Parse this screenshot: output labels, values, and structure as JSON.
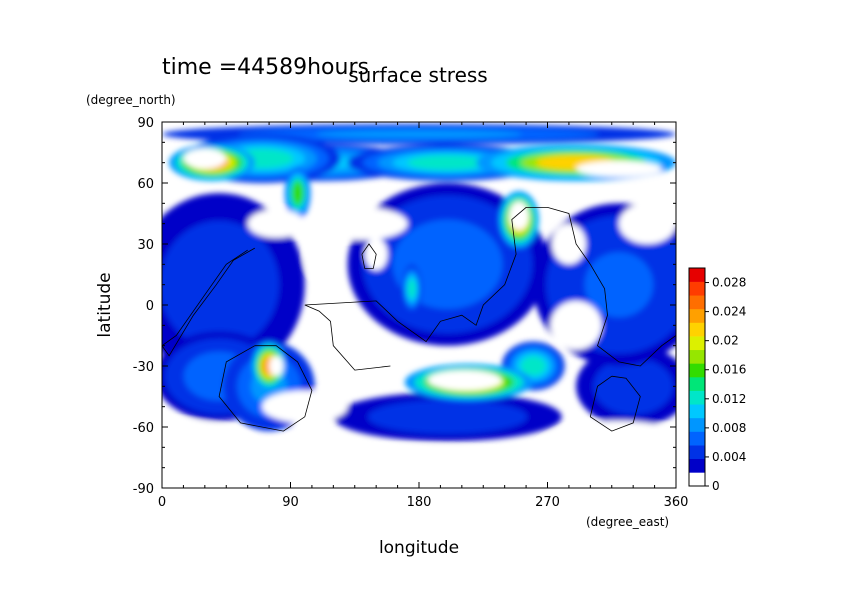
{
  "header": {
    "time_label": "time =44589hours",
    "title": "surface stress"
  },
  "chart_data": {
    "type": "heatmap",
    "title": "surface stress",
    "xlabel": "longitude",
    "ylabel": "latitude",
    "xunit": "(degree_east)",
    "yunit": "(degree_north)",
    "xlim": [
      0,
      360
    ],
    "ylim": [
      -90,
      90
    ],
    "xticks": [
      0,
      90,
      180,
      270,
      360
    ],
    "yticks": [
      90,
      60,
      30,
      0,
      -30,
      -60,
      -90
    ],
    "grid": false,
    "colorbar": {
      "min": 0,
      "max": 0.03,
      "tick_values": [
        0,
        0.004,
        0.008,
        0.012,
        0.016,
        0.02,
        0.024,
        0.028
      ],
      "tick_labels": [
        "0",
        "0.004",
        "0.008",
        "0.012",
        "0.016",
        "0.02",
        "0.024",
        "0.028"
      ],
      "colors": [
        "#ffffff",
        "#0000c8",
        "#0032e6",
        "#0064ff",
        "#0096ff",
        "#00c8ff",
        "#00e6c8",
        "#00e678",
        "#32dc00",
        "#96e600",
        "#dcf000",
        "#ffd200",
        "#ffa000",
        "#ff6e00",
        "#ff3c00",
        "#e60000"
      ]
    },
    "blobs": [
      {
        "lon": 35,
        "lat": 70,
        "rx": 30,
        "ry": 9,
        "value": 0.026
      },
      {
        "lon": 70,
        "lat": 72,
        "rx": 55,
        "ry": 12,
        "value": 0.012
      },
      {
        "lon": 290,
        "lat": 70,
        "rx": 70,
        "ry": 9,
        "value": 0.024
      },
      {
        "lon": 200,
        "lat": 70,
        "rx": 70,
        "ry": 9,
        "value": 0.014
      },
      {
        "lon": 110,
        "lat": 70,
        "rx": 70,
        "ry": 9,
        "value": 0.011
      },
      {
        "lon": 180,
        "lat": 84,
        "rx": 180,
        "ry": 5,
        "value": 0.008
      },
      {
        "lon": 95,
        "lat": 55,
        "rx": 9,
        "ry": 13,
        "value": 0.018
      },
      {
        "lon": 250,
        "lat": 42,
        "rx": 14,
        "ry": 14,
        "value": 0.026
      },
      {
        "lon": 175,
        "lat": 8,
        "rx": 7,
        "ry": 12,
        "value": 0.014
      },
      {
        "lon": 215,
        "lat": -38,
        "rx": 45,
        "ry": 9,
        "value": 0.026
      },
      {
        "lon": 75,
        "lat": -30,
        "rx": 12,
        "ry": 12,
        "value": 0.026
      },
      {
        "lon": 75,
        "lat": -40,
        "rx": 32,
        "ry": 22,
        "value": 0.008
      },
      {
        "lon": 260,
        "lat": -30,
        "rx": 22,
        "ry": 12,
        "value": 0.012
      },
      {
        "lon": 40,
        "lat": -35,
        "rx": 45,
        "ry": 22,
        "value": 0.006
      },
      {
        "lon": 330,
        "lat": -40,
        "rx": 40,
        "ry": 20,
        "value": 0.004
      },
      {
        "lon": 200,
        "lat": -55,
        "rx": 80,
        "ry": 12,
        "value": 0.004
      },
      {
        "lon": 200,
        "lat": 20,
        "rx": 70,
        "ry": 40,
        "value": 0.006
      },
      {
        "lon": 40,
        "lat": 10,
        "rx": 60,
        "ry": 45,
        "value": 0.004
      },
      {
        "lon": 320,
        "lat": 10,
        "rx": 60,
        "ry": 40,
        "value": 0.005
      }
    ],
    "white_holes": [
      {
        "lon": 30,
        "lat": 72,
        "rx": 15,
        "ry": 5
      },
      {
        "lon": 320,
        "lat": 67,
        "rx": 30,
        "ry": 4
      },
      {
        "lon": 250,
        "lat": 44,
        "rx": 7,
        "ry": 7
      },
      {
        "lon": 212,
        "lat": -37,
        "rx": 26,
        "ry": 5
      },
      {
        "lon": 80,
        "lat": -30,
        "rx": 5,
        "ry": 5
      },
      {
        "lon": 140,
        "lat": 40,
        "rx": 32,
        "ry": 8
      },
      {
        "lon": 340,
        "lat": 40,
        "rx": 20,
        "ry": 10
      },
      {
        "lon": 80,
        "lat": 40,
        "rx": 20,
        "ry": 7
      },
      {
        "lon": 10,
        "lat": -75,
        "rx": 60,
        "ry": 18
      },
      {
        "lon": 320,
        "lat": -75,
        "rx": 60,
        "ry": 18
      },
      {
        "lon": 180,
        "lat": -80,
        "rx": 90,
        "ry": 10
      },
      {
        "lon": 100,
        "lat": -50,
        "rx": 30,
        "ry": 8
      },
      {
        "lon": 290,
        "lat": -10,
        "rx": 18,
        "ry": 12
      },
      {
        "lon": 150,
        "lat": 25,
        "rx": 8,
        "ry": 8
      },
      {
        "lon": 285,
        "lat": 30,
        "rx": 12,
        "ry": 10
      },
      {
        "lon": 110,
        "lat": 22,
        "rx": 10,
        "ry": 8
      }
    ],
    "continent_outlines": [
      {
        "name": "south-america",
        "points": [
          [
            65,
            28
          ],
          [
            50,
            22
          ],
          [
            38,
            10
          ],
          [
            22,
            -5
          ],
          [
            5,
            -25
          ],
          [
            0,
            -20
          ],
          [
            10,
            -15
          ],
          [
            30,
            5
          ],
          [
            45,
            20
          ],
          [
            60,
            27
          ]
        ]
      },
      {
        "name": "africa",
        "points": [
          [
            160,
            -30
          ],
          [
            135,
            -32
          ],
          [
            120,
            -20
          ],
          [
            118,
            -8
          ],
          [
            110,
            -3
          ],
          [
            100,
            0
          ],
          [
            150,
            2
          ],
          [
            165,
            -8
          ],
          [
            185,
            -18
          ],
          [
            195,
            -8
          ],
          [
            210,
            -5
          ],
          [
            220,
            -10
          ],
          [
            225,
            0
          ],
          [
            240,
            10
          ],
          [
            248,
            25
          ],
          [
            245,
            42
          ],
          [
            255,
            48
          ],
          [
            270,
            48
          ],
          [
            285,
            45
          ],
          [
            290,
            30
          ],
          [
            300,
            20
          ],
          [
            310,
            8
          ],
          [
            312,
            -5
          ],
          [
            305,
            -20
          ],
          [
            320,
            -28
          ],
          [
            335,
            -30
          ],
          [
            350,
            -20
          ],
          [
            360,
            -15
          ]
        ]
      },
      {
        "name": "antarctica-west",
        "points": [
          [
            65,
            -20
          ],
          [
            45,
            -28
          ],
          [
            40,
            -45
          ],
          [
            55,
            -58
          ],
          [
            85,
            -62
          ],
          [
            100,
            -55
          ],
          [
            105,
            -42
          ],
          [
            95,
            -28
          ],
          [
            80,
            -20
          ],
          [
            65,
            -20
          ]
        ]
      },
      {
        "name": "antarctica-east",
        "points": [
          [
            315,
            -35
          ],
          [
            305,
            -40
          ],
          [
            300,
            -55
          ],
          [
            315,
            -62
          ],
          [
            330,
            -58
          ],
          [
            335,
            -45
          ],
          [
            325,
            -36
          ],
          [
            315,
            -35
          ]
        ]
      },
      {
        "name": "island-1",
        "points": [
          [
            140,
            25
          ],
          [
            145,
            30
          ],
          [
            150,
            25
          ],
          [
            148,
            18
          ],
          [
            142,
            18
          ],
          [
            140,
            25
          ]
        ]
      }
    ]
  }
}
